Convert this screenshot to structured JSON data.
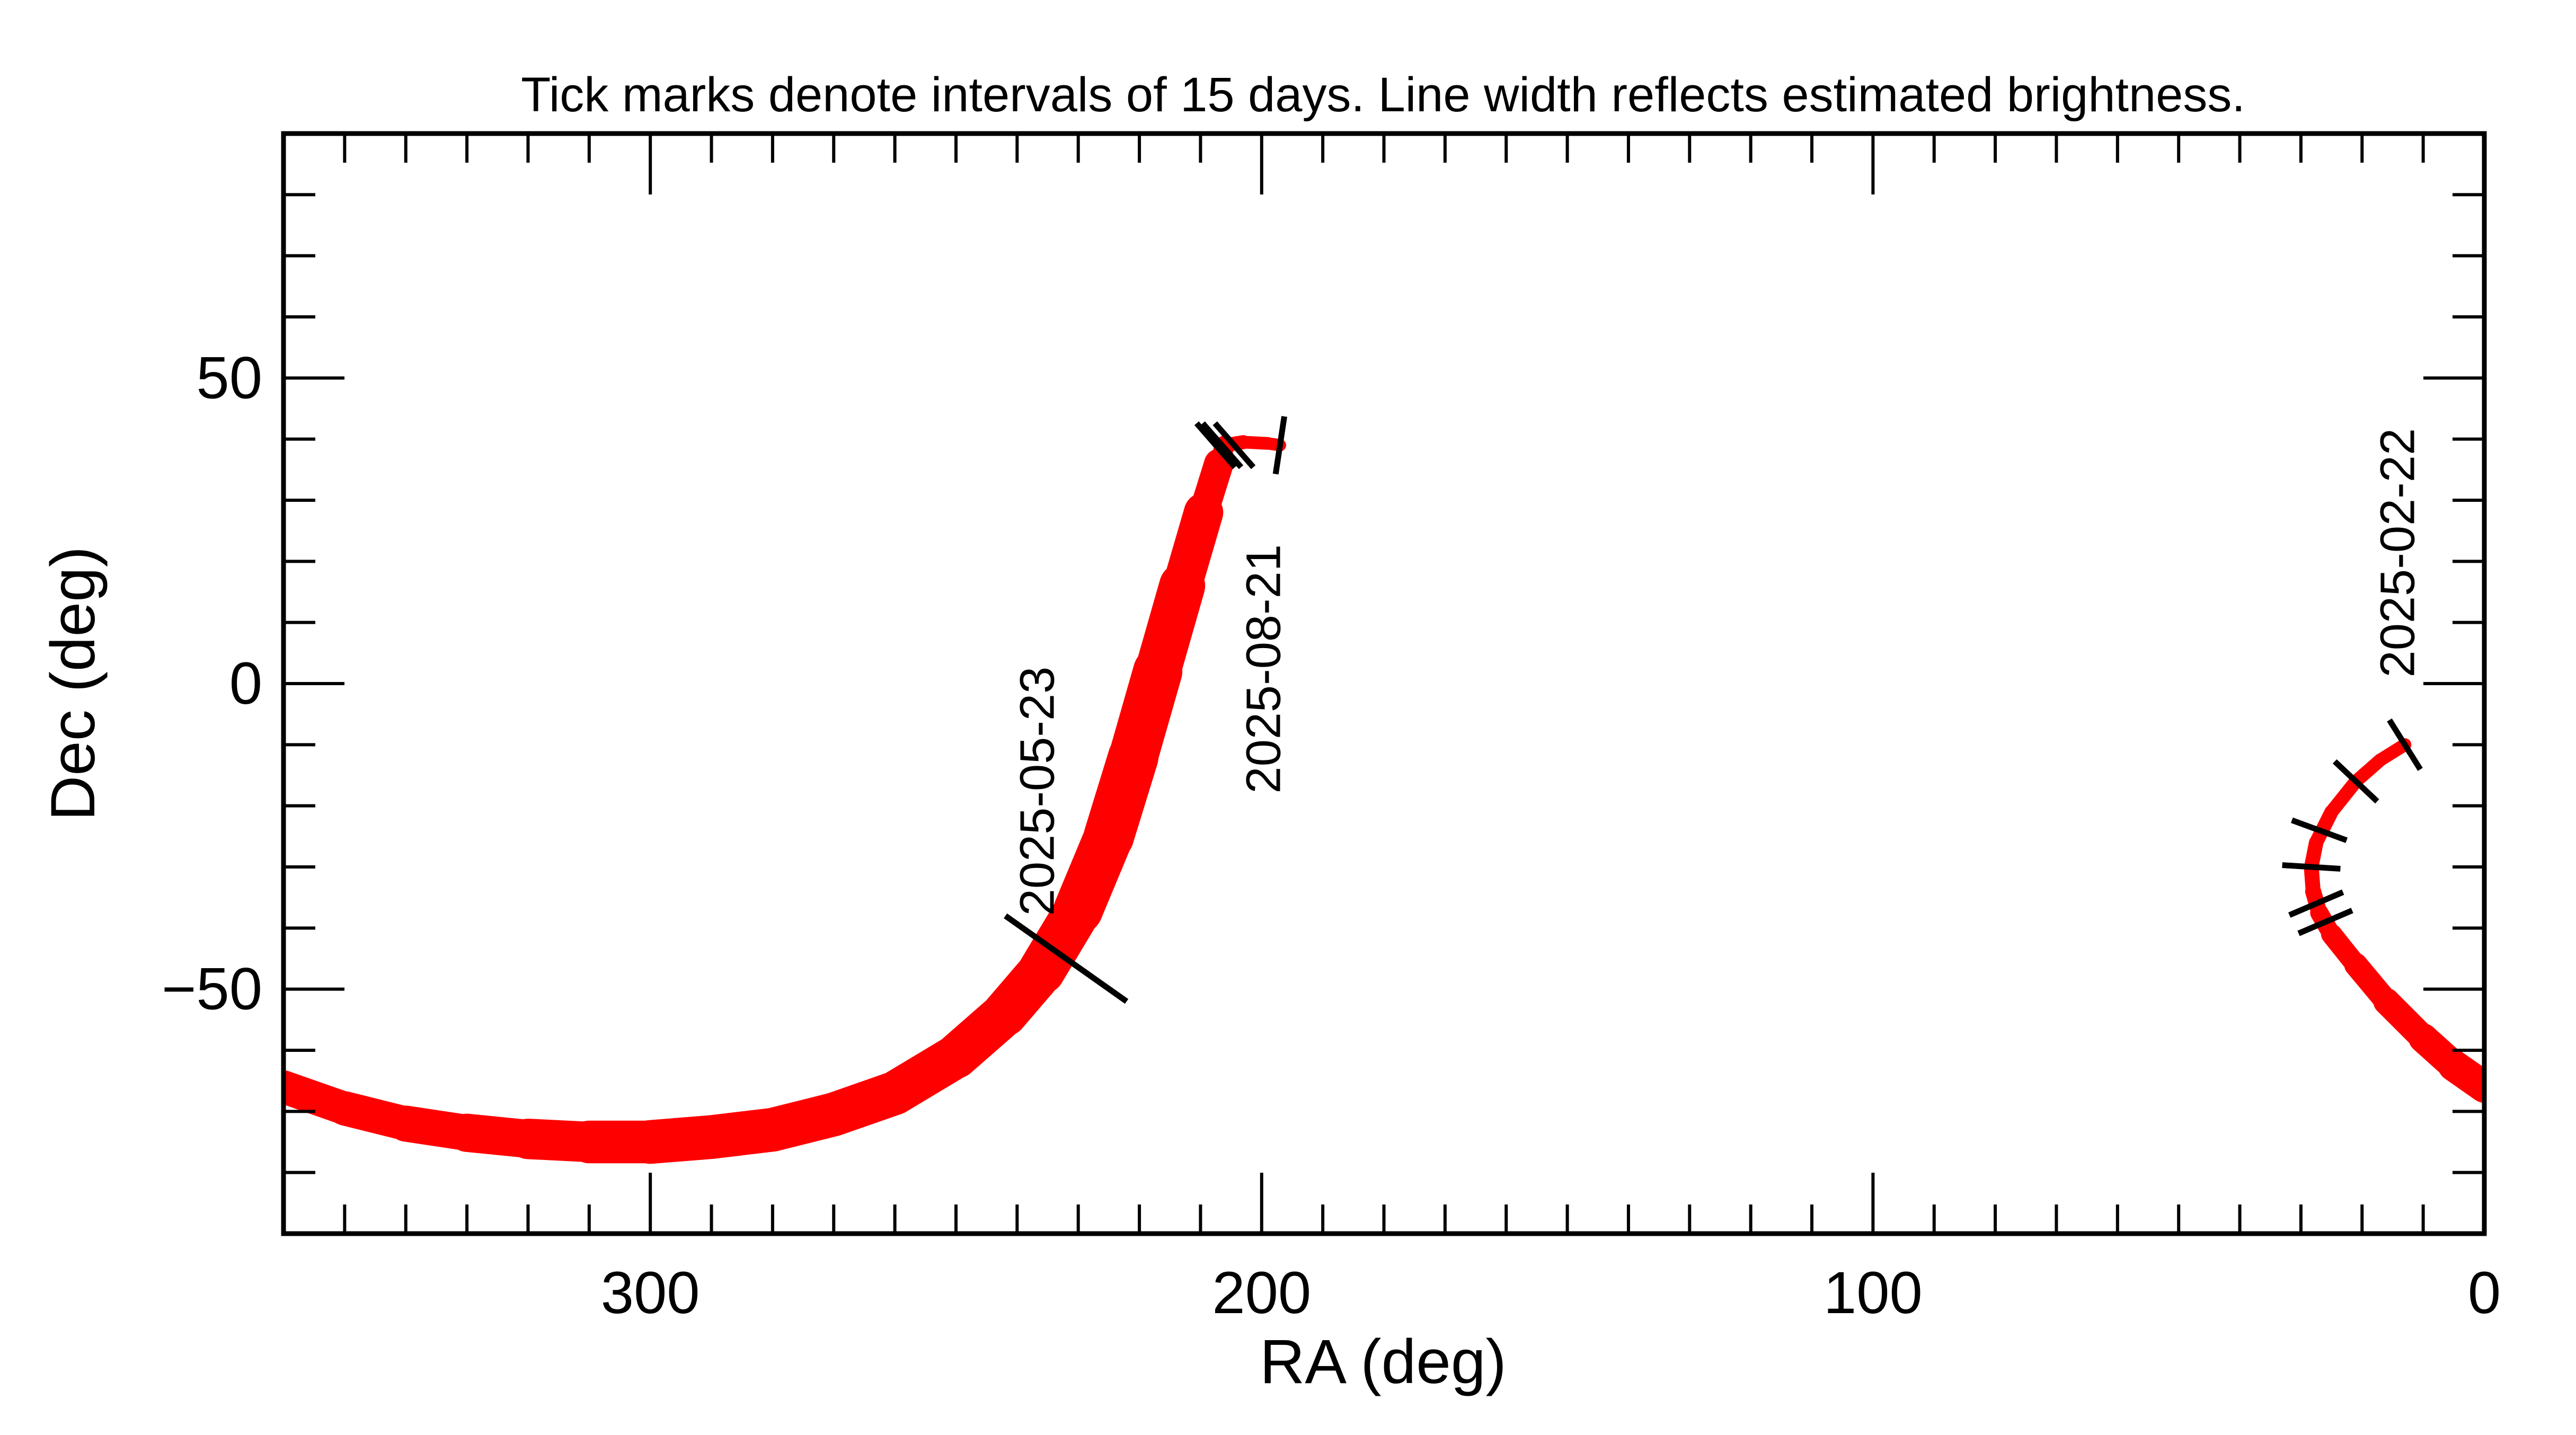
{
  "chart_data": {
    "type": "line",
    "title": "Tick marks denote intervals of 15 days.  Line width reflects estimated brightness.",
    "xlabel": "RA (deg)",
    "ylabel": "Dec (deg)",
    "xlim": [
      360,
      0
    ],
    "ylim": [
      -90,
      90
    ],
    "x_major_ticks": [
      300,
      200,
      100,
      0
    ],
    "x_tick_labels": [
      "300",
      "200",
      "100",
      "0"
    ],
    "x_minor_step": 10,
    "y_major_ticks": [
      50,
      0,
      -50
    ],
    "y_tick_labels": [
      "50",
      "0",
      "−50"
    ],
    "y_minor_step": 10,
    "grid": false,
    "line_color": "#ff0000",
    "tick_color": "#000000",
    "series": [
      {
        "name": "track",
        "points": [
          {
            "ra": 13,
            "dec": -10,
            "w": 0.15
          },
          {
            "ra": 17,
            "dec": -12.5,
            "w": 0.15
          },
          {
            "ra": 21,
            "dec": -16,
            "w": 0.16
          },
          {
            "ra": 25,
            "dec": -21,
            "w": 0.17
          },
          {
            "ra": 27.5,
            "dec": -26,
            "w": 0.18
          },
          {
            "ra": 28.3,
            "dec": -30,
            "w": 0.19
          },
          {
            "ra": 28,
            "dec": -34,
            "w": 0.2
          },
          {
            "ra": 27,
            "dec": -37.5,
            "w": 0.24
          },
          {
            "ra": 25,
            "dec": -41,
            "w": 0.3
          },
          {
            "ra": 21,
            "dec": -46,
            "w": 0.36
          },
          {
            "ra": 16,
            "dec": -52,
            "w": 0.42
          },
          {
            "ra": 10,
            "dec": -58,
            "w": 0.5
          },
          {
            "ra": 5,
            "dec": -62.5,
            "w": 0.55
          },
          {
            "ra": 0,
            "dec": -66,
            "w": 0.6
          },
          {
            "ra": 360,
            "dec": -66,
            "w": 0.6
          },
          {
            "ra": 350,
            "dec": -69.5,
            "w": 0.62
          },
          {
            "ra": 340,
            "dec": -72,
            "w": 0.65
          },
          {
            "ra": 330,
            "dec": -73.5,
            "w": 0.7
          },
          {
            "ra": 320,
            "dec": -74.5,
            "w": 0.75
          },
          {
            "ra": 310,
            "dec": -75,
            "w": 0.8
          },
          {
            "ra": 300,
            "dec": -75,
            "w": 0.85
          },
          {
            "ra": 290,
            "dec": -74.2,
            "w": 0.85
          },
          {
            "ra": 280,
            "dec": -73,
            "w": 0.85
          },
          {
            "ra": 270,
            "dec": -70.5,
            "w": 0.85
          },
          {
            "ra": 260,
            "dec": -67,
            "w": 0.85
          },
          {
            "ra": 250,
            "dec": -61,
            "w": 0.85
          },
          {
            "ra": 242,
            "dec": -54,
            "w": 0.88
          },
          {
            "ra": 236,
            "dec": -47,
            "w": 0.9
          },
          {
            "ra": 230,
            "dec": -37,
            "w": 0.95
          },
          {
            "ra": 225,
            "dec": -25,
            "w": 1.0
          },
          {
            "ra": 221,
            "dec": -12,
            "w": 1.0
          },
          {
            "ra": 217,
            "dec": 2,
            "w": 0.95
          },
          {
            "ra": 213,
            "dec": 16,
            "w": 0.85
          },
          {
            "ra": 209.5,
            "dec": 28,
            "w": 0.65
          },
          {
            "ra": 207,
            "dec": 36,
            "w": 0.4
          },
          {
            "ra": 206,
            "dec": 39,
            "w": 0.2
          },
          {
            "ra": 203,
            "dec": 39.5,
            "w": 0.15
          },
          {
            "ra": 199,
            "dec": 39.3,
            "w": 0.14
          },
          {
            "ra": 197,
            "dec": 39,
            "w": 0.13
          }
        ]
      }
    ],
    "date_ticks": [
      {
        "ra": 13,
        "dec": -10
      },
      {
        "ra": 21,
        "dec": -16
      },
      {
        "ra": 27,
        "dec": -24
      },
      {
        "ra": 28.3,
        "dec": -30
      },
      {
        "ra": 27.5,
        "dec": -36
      },
      {
        "ra": 26,
        "dec": -39
      },
      {
        "ra": 232,
        "dec": -45
      },
      {
        "ra": 207.5,
        "dec": 39
      },
      {
        "ra": 206.5,
        "dec": 39
      },
      {
        "ra": 204.5,
        "dec": 39
      },
      {
        "ra": 197,
        "dec": 39
      }
    ],
    "annotations": [
      {
        "text": "2025-02-22",
        "ra": 11.5,
        "dec": 1
      },
      {
        "text": "2025-05-23",
        "ra": 234,
        "dec": -38
      },
      {
        "text": "2025-08-21",
        "ra": 197,
        "dec": -18
      }
    ]
  }
}
